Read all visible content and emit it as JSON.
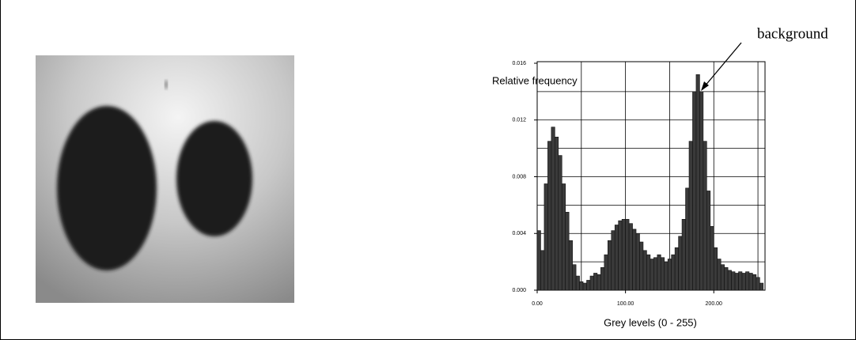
{
  "chart_data": {
    "type": "histogram",
    "ylabel": "Relative frequency",
    "xlabel": "Grey levels (0 - 255)",
    "annotation": "background",
    "color": "#3a3a3a",
    "bins": [
      0,
      4,
      8,
      12,
      16,
      20,
      24,
      28,
      32,
      36,
      40,
      44,
      48,
      52,
      56,
      60,
      64,
      68,
      72,
      76,
      80,
      84,
      88,
      92,
      96,
      100,
      104,
      108,
      112,
      116,
      120,
      124,
      128,
      132,
      136,
      140,
      144,
      148,
      152,
      156,
      160,
      164,
      168,
      172,
      176,
      180,
      184,
      188,
      192,
      196,
      200,
      204,
      208,
      212,
      216,
      220,
      224,
      228,
      232,
      236,
      240,
      244,
      248,
      252,
      256
    ],
    "values": [
      0.0042,
      0.0028,
      0.0075,
      0.0105,
      0.0115,
      0.0108,
      0.0095,
      0.0075,
      0.0055,
      0.0035,
      0.0018,
      0.001,
      0.0006,
      0.0005,
      0.0007,
      0.001,
      0.0012,
      0.0011,
      0.0016,
      0.0025,
      0.0035,
      0.0042,
      0.0046,
      0.0049,
      0.005,
      0.005,
      0.0047,
      0.0043,
      0.004,
      0.0034,
      0.0028,
      0.0025,
      0.0022,
      0.0023,
      0.0025,
      0.0023,
      0.002,
      0.0022,
      0.0025,
      0.003,
      0.0038,
      0.005,
      0.0072,
      0.0105,
      0.014,
      0.0152,
      0.014,
      0.0105,
      0.007,
      0.0045,
      0.003,
      0.0022,
      0.0018,
      0.0016,
      0.0014,
      0.0013,
      0.0012,
      0.0013,
      0.0012,
      0.0013,
      0.0012,
      0.0011,
      0.0009,
      0.0005
    ],
    "xlim": [
      0,
      258
    ],
    "ylim": [
      0,
      0.016
    ],
    "xticks": [
      {
        "value": 0,
        "label": "0.00"
      },
      {
        "value": 100,
        "label": "100.00"
      },
      {
        "value": 200,
        "label": "200.00"
      }
    ],
    "yticks": [
      {
        "value": 0,
        "label": "0.000"
      },
      {
        "value": 0.004,
        "label": "0.004"
      },
      {
        "value": 0.008,
        "label": "0.008"
      },
      {
        "value": 0.012,
        "label": "0.012"
      },
      {
        "value": 0.016,
        "label": "0.016"
      }
    ],
    "xgrid": [
      50,
      100,
      150,
      200,
      250
    ],
    "ygrid": [
      0.002,
      0.004,
      0.006,
      0.008,
      0.01,
      0.012,
      0.014
    ],
    "grid": true
  }
}
